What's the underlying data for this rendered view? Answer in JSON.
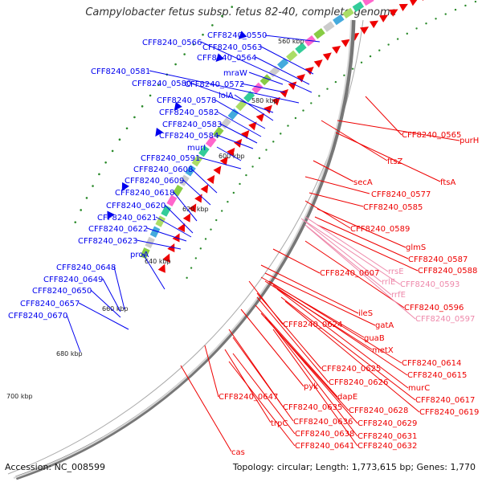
{
  "title": "Campylobacter fetus subsp. fetus 82-40, complete genome",
  "footer": {
    "accession": "Accession: NC_008599",
    "summary": "Topology: circular; Length: 1,773,615 bp; Genes: 1,770"
  },
  "colors": {
    "forward": "#0000ee",
    "reverse": "#ee0000",
    "rna": "#ee88aa",
    "backbone": "#555555",
    "tick": "#2a8a2a"
  },
  "kbp_ticks": [
    "560 kbp",
    "580 kbp",
    "600 kbp",
    "620 kbp",
    "640 kbp",
    "660 kbp",
    "680 kbp",
    "700 kbp"
  ],
  "left_labels": [
    "CFF8240_0550",
    "CFF8240_0566",
    "CFF8240_0563",
    "CFF8240_0564",
    "CFF8240_0581",
    "mraW",
    "CFF8240_0580",
    "CFF8240_0572",
    "lolA",
    "CFF8240_0578",
    "CFF8240_0582",
    "CFF8240_0583",
    "CFF8240_0584",
    "murI",
    "CFF8240_0591",
    "CFF8240_0608",
    "CFF8240_0609",
    "CFF8240_0618",
    "CFF8240_0620",
    "CFF8240_0621",
    "CFF8240_0622",
    "CFF8240_0623",
    "proA",
    "CFF8240_0648",
    "CFF8240_0649",
    "CFF8240_0650",
    "CFF8240_0657",
    "CFF8240_0670"
  ],
  "right_labels": [
    "CFF8240_0565",
    "purH",
    "ftsZ",
    "ftsA",
    "secA",
    "CFF8240_0577",
    "CFF8240_0585",
    "CFF8240_0589",
    "glmS",
    "CFF8240_0587",
    "CFF8240_0588",
    "CFF8240_0607",
    "ileS",
    "CFF8240_0596",
    "gatA",
    "CFF8240_0624",
    "guaB",
    "metX",
    "CFF8240_0614",
    "CFF8240_0615",
    "CFF8240_0625",
    "CFF8240_0626",
    "murC",
    "pyk",
    "dapE",
    "CFF8240_0617",
    "CFF8240_0619",
    "CFF8240_0647",
    "CFF8240_0635",
    "CFF8240_0628",
    "CFF8240_0636",
    "CFF8240_0629",
    "trpC",
    "CFF8240_0638",
    "CFF8240_0631",
    "CFF8240_0641",
    "CFF8240_0632",
    "cas"
  ],
  "rna_labels": [
    "rrsE",
    "rrlE",
    "CFF8240_0593",
    "rrfE",
    "CFF8240_0597"
  ]
}
